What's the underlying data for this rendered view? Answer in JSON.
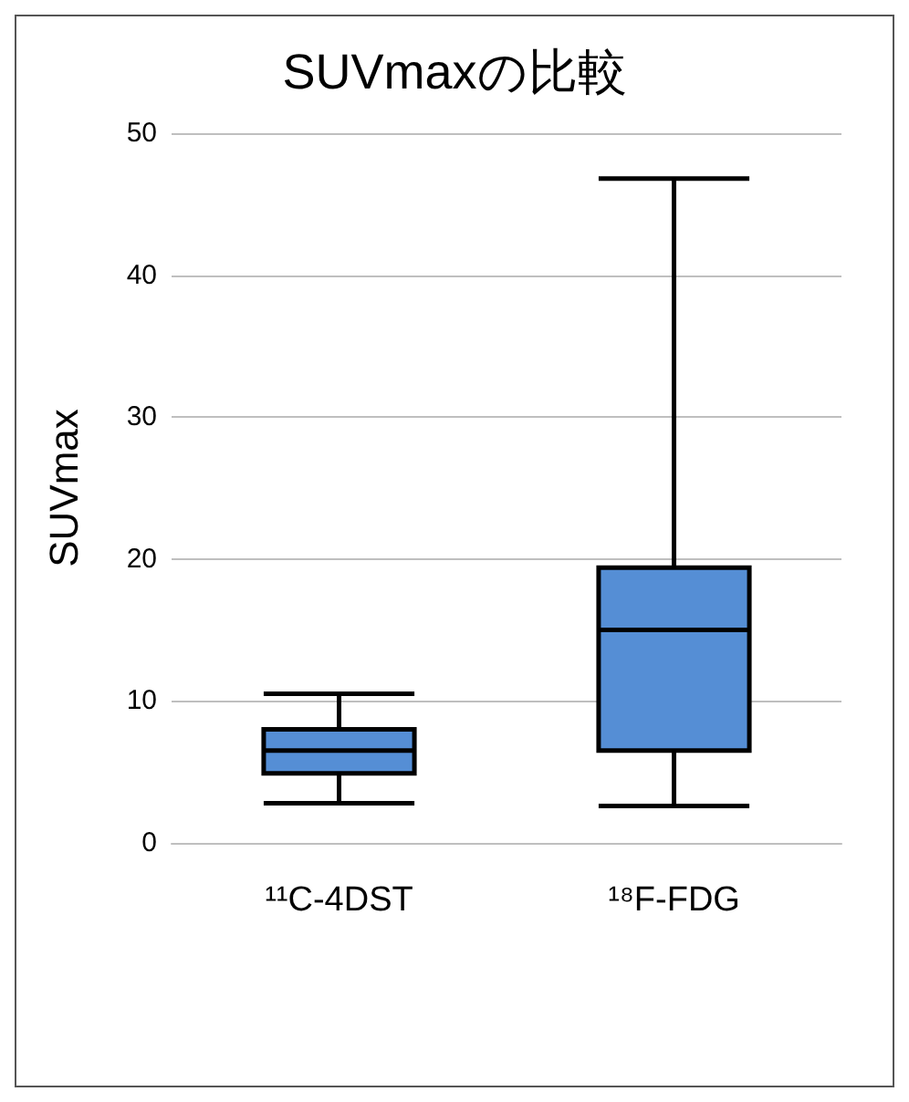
{
  "chart_data": {
    "type": "box",
    "title": "SUVmaxの比較",
    "ylabel": "SUVmax",
    "categories": [
      "¹¹C-4DST",
      "¹⁸F-FDG"
    ],
    "boxes": [
      {
        "low": 2.8,
        "q1": 4.9,
        "median": 6.5,
        "q3": 8,
        "high": 10.5
      },
      {
        "low": 2.6,
        "q1": 6.5,
        "median": 15,
        "q3": 19.4,
        "high": 46.8
      }
    ],
    "color": "#558ed5",
    "ylim": [
      0,
      50
    ],
    "yticks": [
      0,
      10,
      20,
      30,
      40,
      50
    ],
    "grid": "y"
  }
}
